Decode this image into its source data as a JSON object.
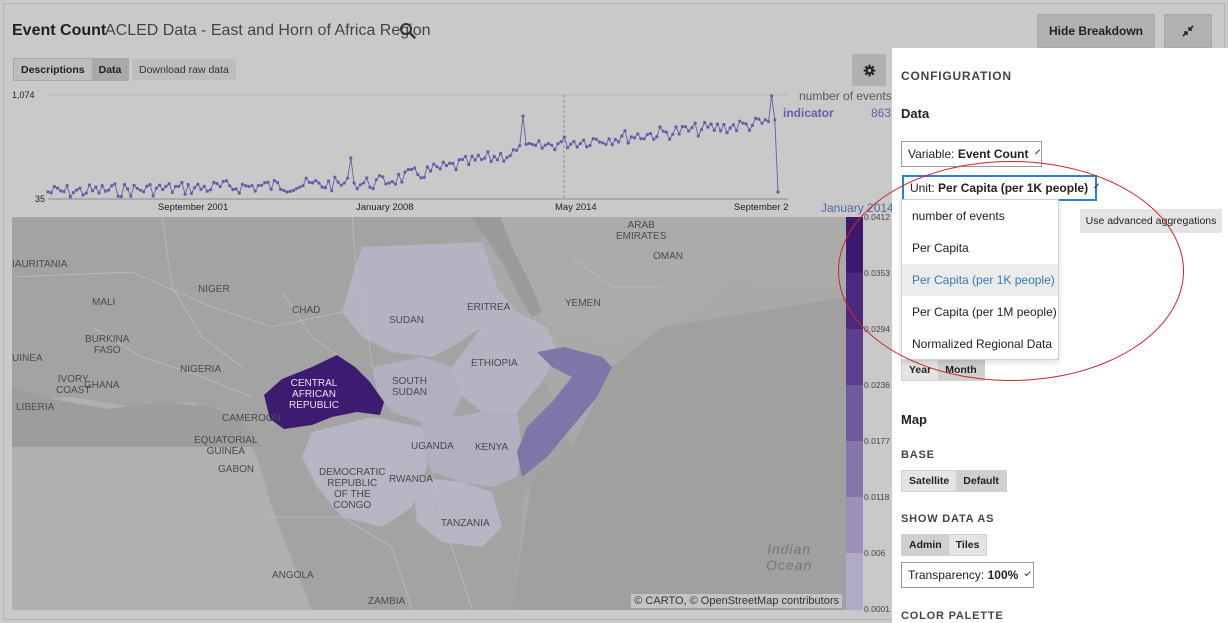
{
  "header": {
    "title": "Event Count",
    "subtitle": "ACLED Data - East and Horn of Africa Region",
    "hide_breakdown_label": "Hide Breakdown"
  },
  "tabs": [
    {
      "label": "Descriptions",
      "active": false
    },
    {
      "label": "Data",
      "active": true
    }
  ],
  "download_label": "Download raw data",
  "timeline": {
    "y_max_label": "1,074",
    "y_min_label": "35",
    "x_labels": [
      "September 2001",
      "January 2008",
      "May 2014",
      "September 2"
    ],
    "legend_metric": "number of events",
    "legend_series": "indicator",
    "legend_value": "863",
    "current_date": "January 2014",
    "series_color": "#6a5aa8"
  },
  "map": {
    "labels": {
      "mauritania": "IAURITANIA",
      "mali": "MALI",
      "niger": "NIGER",
      "chad": "CHAD",
      "sudan": "SUDAN",
      "eritrea": "ERITREA",
      "yemen": "YEMEN",
      "oman": "OMAN",
      "uae": "ARAB\nEMIRATES",
      "burkina": "BURKINA\nFASO",
      "guinea": "UINEA",
      "nigeria": "NIGERIA",
      "ethiopia": "ETHIOPIA",
      "south_sudan": "SOUTH\nSUDAN",
      "ivory": "IVORY\nCOAST",
      "ghana": "GHANA",
      "liberia": "LIBERIA",
      "car": "CENTRAL\nAFRICAN\nREPUBLIC",
      "cameroon": "CAMEROON",
      "eq_guinea": "EQUATORIAL\nGUINEA",
      "gabon": "GABON",
      "uganda": "UGANDA",
      "kenya": "KENYA",
      "drc": "DEMOCRATIC\nREPUBLIC\nOF THE\nCONGO",
      "rwanda": "RWANDA",
      "tanzania": "TANZANIA",
      "angola": "ANGOLA",
      "zambia": "ZAMBIA",
      "indian_ocean": "Indian\nOcean"
    },
    "attribution": "© CARTO, © OpenStreetMap contributors",
    "scale_labels": [
      "0.0412",
      "0.0353",
      "0.0294",
      "0.0236",
      "0.0177",
      "0.0118",
      "0.006",
      "0.0001"
    ],
    "scale_colors": [
      "#3d1a6e",
      "#4b2a7e",
      "#5b3e8e",
      "#6e5a9c",
      "#8576ab",
      "#9b90b8",
      "#b1aac5",
      "#c3bfd0"
    ]
  },
  "panel": {
    "configuration": "CONFIGURATION",
    "data_section": "Data",
    "variable_prefix": "Variable:",
    "variable_value": "Event Count",
    "unit_prefix": "Unit:",
    "unit_value": "Per Capita (per 1K people)",
    "advanced_label": "Use advanced aggregations",
    "time_options": [
      "Year",
      "Month"
    ],
    "map_section": "Map",
    "base_heading": "BASE",
    "base_options": [
      "Satellite",
      "Default"
    ],
    "show_as_heading": "SHOW DATA AS",
    "show_as_options": [
      "Admin",
      "Tiles"
    ],
    "transparency_prefix": "Transparency:",
    "transparency_value": "100%",
    "color_palette_heading": "COLOR PALETTE"
  },
  "unit_dropdown": {
    "options": [
      "number of events",
      "Per Capita",
      "Per Capita (per 1K people)",
      "Per Capita (per 1M people)",
      "Normalized Regional Data"
    ],
    "selected": "Per Capita (per 1K people)"
  }
}
